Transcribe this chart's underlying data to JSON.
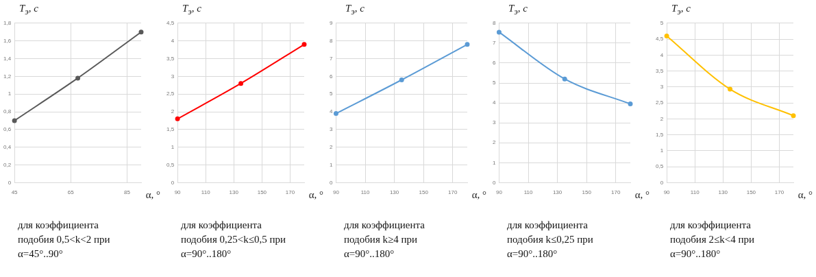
{
  "chart_data": [
    {
      "type": "line",
      "xlabel": "α, °",
      "ylabel": "T$_{э}$, с",
      "annotations": [
        "для коэффициента подобия 0,5<k<2 при α=45°..90°"
      ],
      "x": [
        45,
        67.5,
        90
      ],
      "xlim": [
        45,
        90
      ],
      "xticks": [
        45,
        65,
        85
      ],
      "ylim": [
        0,
        1.8
      ],
      "yticks": [
        0,
        {
          "value": 0.2,
          "label": "0,2"
        },
        {
          "value": 0.4,
          "label": "0,4"
        },
        {
          "value": 0.6,
          "label": "0,6"
        },
        {
          "value": 0.8,
          "label": "0,8"
        },
        1,
        {
          "value": 1.2,
          "label": "1,2"
        },
        {
          "value": 1.4,
          "label": "1,4"
        },
        {
          "value": 1.6,
          "label": "1,6"
        },
        {
          "value": 1.8,
          "label": "1,8"
        }
      ],
      "grid": true,
      "marker": "circle",
      "series": [
        {
          "color": "#595959",
          "values": [
            0.7,
            1.18,
            1.7
          ]
        }
      ]
    },
    {
      "type": "line",
      "xlabel": "α, °",
      "ylabel": "T$_{э}$, с",
      "annotations": [
        "для коэффициента подобия 0,25<k≤0,5 при α=90°..180°"
      ],
      "x": [
        90,
        135,
        180
      ],
      "xlim": [
        90,
        180
      ],
      "xticks": [
        90,
        110,
        130,
        150,
        170
      ],
      "ylim": [
        0,
        4.5
      ],
      "yticks": [
        0,
        {
          "value": 0.5,
          "label": "0,5"
        },
        1,
        {
          "value": 1.5,
          "label": "1,5"
        },
        2,
        {
          "value": 2.5,
          "label": "2,5"
        },
        3,
        {
          "value": 3.5,
          "label": "3,5"
        },
        4,
        {
          "value": 4.5,
          "label": "4,5"
        }
      ],
      "grid": true,
      "marker": "circle",
      "series": [
        {
          "color": "#ff0000",
          "values": [
            1.8,
            2.8,
            3.9
          ]
        }
      ]
    },
    {
      "type": "line",
      "xlabel": "α, °",
      "ylabel": "T$_{э}$, с",
      "annotations": [
        "для коэффициента подобия k≥4 при α=90°..180°"
      ],
      "x": [
        90,
        135,
        180
      ],
      "xlim": [
        90,
        180
      ],
      "xticks": [
        90,
        110,
        130,
        150,
        170
      ],
      "ylim": [
        0,
        9
      ],
      "yticks": [
        0,
        1,
        2,
        3,
        4,
        5,
        6,
        7,
        8,
        9
      ],
      "grid": true,
      "marker": "circle",
      "series": [
        {
          "color": "#5b9bd5",
          "values": [
            3.9,
            5.8,
            7.8
          ]
        }
      ]
    },
    {
      "type": "line",
      "xlabel": "α, °",
      "ylabel": "T$_{э}$, с",
      "annotations": [
        "для коэффициента подобия k≤0,25 при α=90°..180°"
      ],
      "x": [
        90,
        135,
        180
      ],
      "xlim": [
        90,
        180
      ],
      "xticks": [
        90,
        110,
        130,
        150,
        170
      ],
      "ylim": [
        0,
        8
      ],
      "yticks": [
        0,
        1,
        2,
        3,
        4,
        5,
        6,
        7,
        8
      ],
      "grid": true,
      "marker": "circle",
      "series": [
        {
          "color": "#5b9bd5",
          "values": [
            7.55,
            5.2,
            3.95
          ]
        }
      ]
    },
    {
      "type": "line",
      "xlabel": "α, °",
      "ylabel": "T$_{э}$, с",
      "annotations": [
        "для коэффициента подобия 2≤k<4 при α=90°..180°"
      ],
      "x": [
        90,
        135,
        180
      ],
      "xlim": [
        90,
        180
      ],
      "xticks": [
        90,
        110,
        130,
        150,
        170
      ],
      "ylim": [
        0,
        5
      ],
      "yticks": [
        0,
        {
          "value": 0.5,
          "label": "0,5"
        },
        1,
        {
          "value": 1.5,
          "label": "1,5"
        },
        2,
        {
          "value": 2.5,
          "label": "2,5"
        },
        3,
        {
          "value": 3.5,
          "label": "3,5"
        },
        4,
        {
          "value": 4.5,
          "label": "4,5"
        },
        5
      ],
      "grid": true,
      "marker": "circle",
      "series": [
        {
          "color": "#ffc000",
          "values": [
            4.6,
            2.93,
            2.1
          ]
        }
      ]
    }
  ]
}
